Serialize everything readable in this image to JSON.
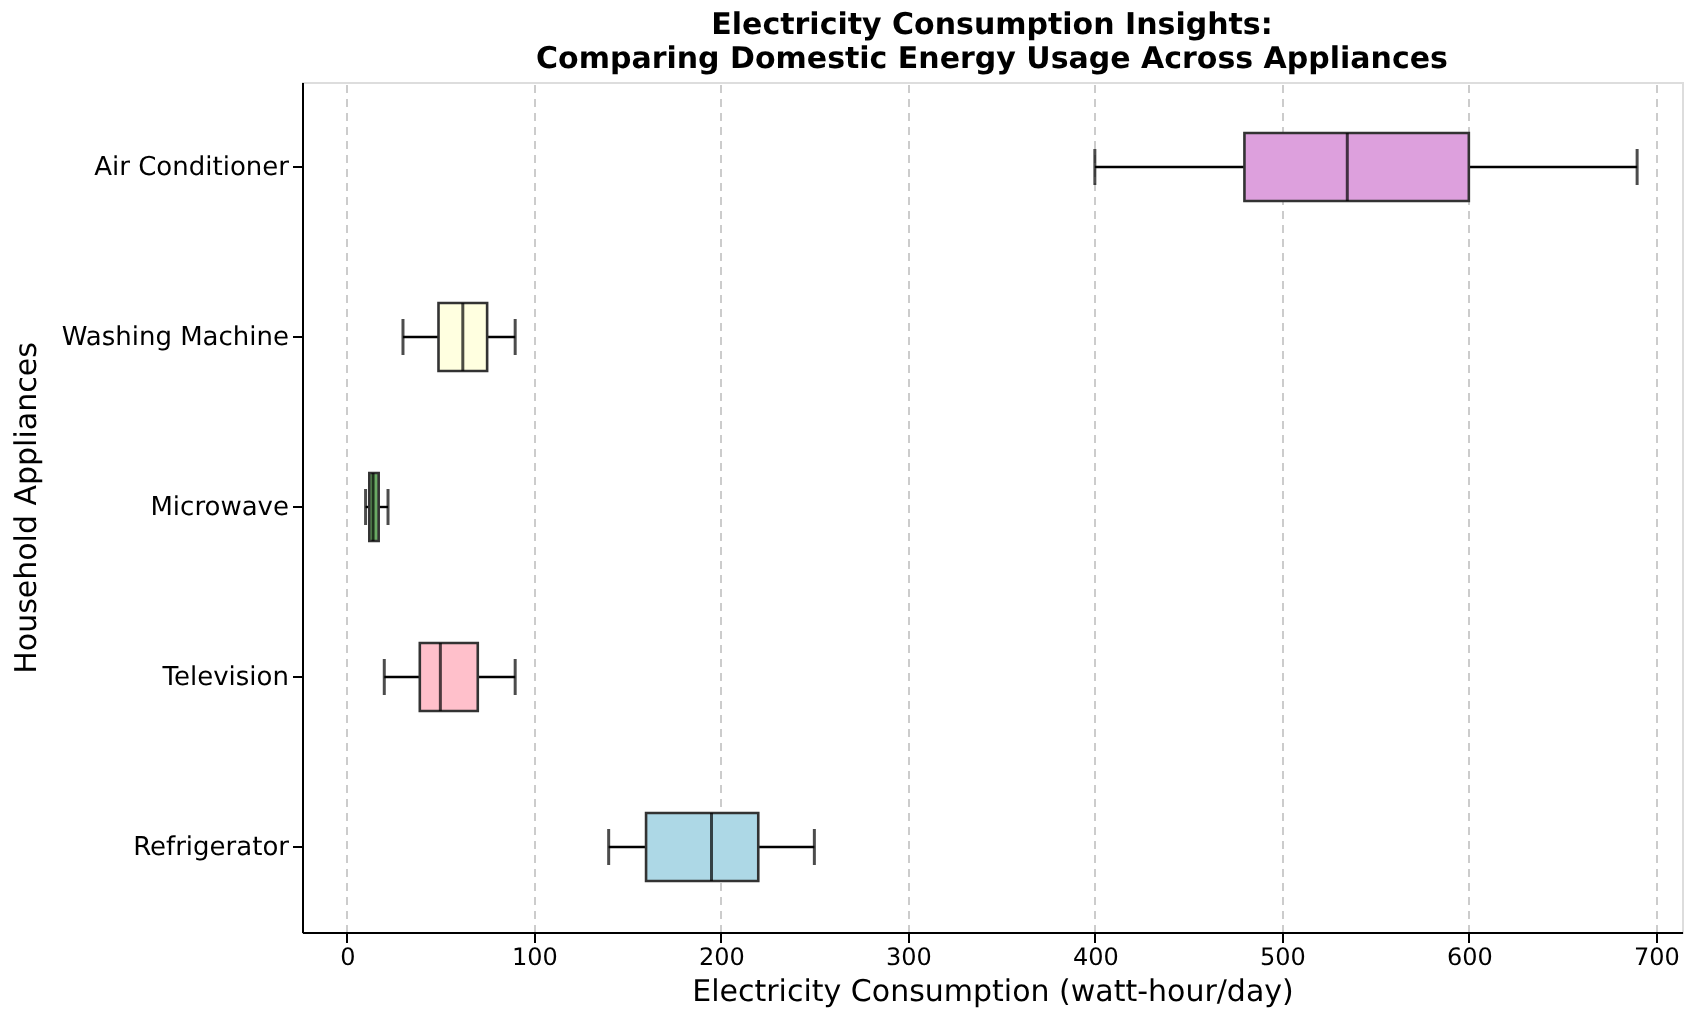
{
  "chart_data": {
    "type": "box",
    "orientation": "horizontal",
    "title": "Electricity Consumption Insights:\nComparing Domestic Energy Usage Across Appliances",
    "xlabel": "Electricity Consumption (watt-hour/day)",
    "ylabel": "Household Appliances",
    "categories": [
      "Air Conditioner",
      "Washing Machine",
      "Microwave",
      "Television",
      "Refrigerator"
    ],
    "boxes": [
      {
        "low": 400,
        "q1": 480,
        "median": 535,
        "q3": 600,
        "high": 690
      },
      {
        "low": 30,
        "q1": 49,
        "median": 62,
        "q3": 75,
        "high": 90
      },
      {
        "low": 10,
        "q1": 12,
        "median": 14,
        "q3": 17,
        "high": 22
      },
      {
        "low": 20,
        "q1": 39,
        "median": 50,
        "q3": 70,
        "high": 90
      },
      {
        "low": 140,
        "q1": 160,
        "median": 195,
        "q3": 220,
        "high": 250
      }
    ],
    "colors": [
      "#dda0dd",
      "#ffffe0",
      "#6aaa64",
      "#ffc0cb",
      "#add8e6"
    ],
    "xlim": [
      -24,
      714
    ],
    "xticks": [
      0,
      100,
      200,
      300,
      400,
      500,
      600,
      700
    ],
    "grid": "x",
    "legend": false
  }
}
